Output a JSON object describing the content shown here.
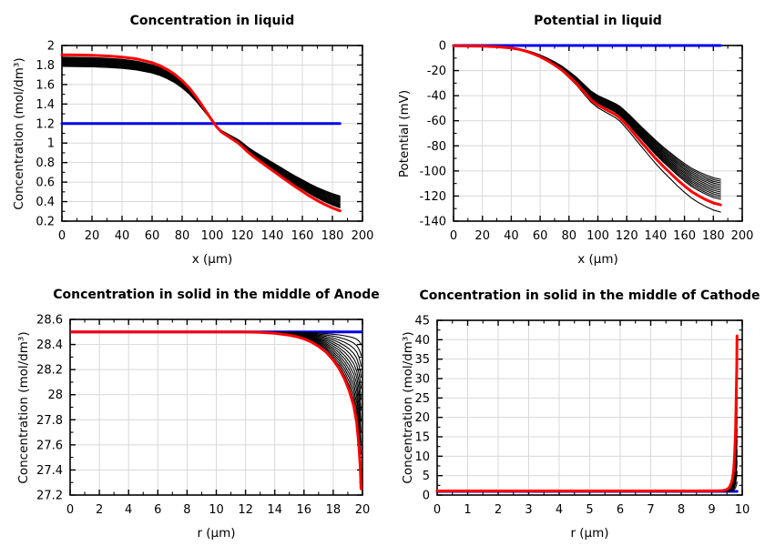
{
  "page": {
    "background": "#ffffff"
  },
  "colors": {
    "main_series": "#ff0000",
    "reference_series": "#0000e8",
    "family_series": "#000000",
    "grid": "#d8d8d8",
    "axis": "#000000"
  },
  "chart_data": [
    {
      "type": "line",
      "title": "Concentration in liquid",
      "xlabel": "x (µm)",
      "ylabel": "Concentration (mol/dm³)",
      "xlim": [
        0,
        200
      ],
      "ylim": [
        0.2,
        2
      ],
      "xticks": [
        "0",
        "20",
        "40",
        "60",
        "80",
        "100",
        "120",
        "140",
        "160",
        "180",
        "200"
      ],
      "yticks": [
        "0.2",
        "0.4",
        "0.6",
        "0.8",
        "1",
        "1.2",
        "1.4",
        "1.6",
        "1.8",
        "2"
      ],
      "grid": true,
      "legend": "none",
      "series": [
        {
          "name": "initial-reference",
          "color_key": "reference_series",
          "width": 3,
          "points": [
            [
              0,
              1.2
            ],
            [
              185,
              1.2
            ]
          ]
        },
        {
          "name": "time-family",
          "color_key": "family_series",
          "width": 1.1,
          "derived_from": "final-time",
          "pivot": 1.2,
          "count": 13,
          "scale_range": [
            0.83,
            0.965
          ]
        },
        {
          "name": "final-time",
          "color_key": "main_series",
          "width": 3,
          "points": [
            [
              0,
              1.905
            ],
            [
              10,
              1.903
            ],
            [
              20,
              1.9
            ],
            [
              30,
              1.893
            ],
            [
              40,
              1.882
            ],
            [
              50,
              1.862
            ],
            [
              60,
              1.825
            ],
            [
              65,
              1.795
            ],
            [
              70,
              1.755
            ],
            [
              75,
              1.705
            ],
            [
              80,
              1.64
            ],
            [
              85,
              1.56
            ],
            [
              90,
              1.46
            ],
            [
              95,
              1.345
            ],
            [
              100,
              1.23
            ],
            [
              103,
              1.165
            ],
            [
              106,
              1.115
            ],
            [
              110,
              1.075
            ],
            [
              114,
              1.035
            ],
            [
              117,
              1.005
            ],
            [
              120,
              0.965
            ],
            [
              124,
              0.905
            ],
            [
              128,
              0.855
            ],
            [
              132,
              0.81
            ],
            [
              136,
              0.765
            ],
            [
              140,
              0.72
            ],
            [
              145,
              0.665
            ],
            [
              150,
              0.61
            ],
            [
              155,
              0.555
            ],
            [
              160,
              0.505
            ],
            [
              165,
              0.455
            ],
            [
              170,
              0.41
            ],
            [
              175,
              0.37
            ],
            [
              180,
              0.335
            ],
            [
              185,
              0.305
            ]
          ]
        }
      ]
    },
    {
      "type": "line",
      "title": "Potential in liquid",
      "xlabel": "x (µm)",
      "ylabel": "Potential (mV)",
      "xlim": [
        0,
        200
      ],
      "ylim": [
        -140,
        0
      ],
      "xticks": [
        "0",
        "20",
        "40",
        "60",
        "80",
        "100",
        "120",
        "140",
        "160",
        "180",
        "200"
      ],
      "yticks": [
        "0",
        "-20",
        "-40",
        "-60",
        "-80",
        "-100",
        "-120",
        "-140"
      ],
      "grid": true,
      "legend": "none",
      "series": [
        {
          "name": "initial-reference",
          "color_key": "reference_series",
          "width": 3,
          "points": [
            [
              0,
              0
            ],
            [
              185,
              0
            ]
          ]
        },
        {
          "name": "time-family",
          "color_key": "family_series",
          "width": 1.1,
          "derived_from": "final-time",
          "pivot": 0,
          "count": 12,
          "scale_range": [
            0.84,
            0.965
          ],
          "extra_scales": [
            1.045
          ]
        },
        {
          "name": "final-time",
          "color_key": "main_series",
          "width": 3,
          "points": [
            [
              0,
              -0.3
            ],
            [
              10,
              -0.4
            ],
            [
              20,
              -0.6
            ],
            [
              30,
              -1
            ],
            [
              40,
              -2
            ],
            [
              45,
              -3
            ],
            [
              50,
              -4.5
            ],
            [
              55,
              -6.5
            ],
            [
              60,
              -9
            ],
            [
              65,
              -12
            ],
            [
              70,
              -15.5
            ],
            [
              75,
              -19.5
            ],
            [
              80,
              -24.5
            ],
            [
              85,
              -30
            ],
            [
              90,
              -36.5
            ],
            [
              95,
              -43
            ],
            [
              100,
              -47.5
            ],
            [
              104,
              -50
            ],
            [
              108,
              -52.5
            ],
            [
              112,
              -55
            ],
            [
              115,
              -57.5
            ],
            [
              118,
              -61
            ],
            [
              122,
              -66
            ],
            [
              126,
              -71.5
            ],
            [
              130,
              -77
            ],
            [
              135,
              -83.5
            ],
            [
              140,
              -90
            ],
            [
              145,
              -96
            ],
            [
              150,
              -101.5
            ],
            [
              155,
              -107
            ],
            [
              160,
              -112
            ],
            [
              165,
              -116.5
            ],
            [
              170,
              -120
            ],
            [
              175,
              -123
            ],
            [
              180,
              -125.5
            ],
            [
              185,
              -127
            ]
          ]
        }
      ]
    },
    {
      "type": "line",
      "title": "Concentration in solid in the middle of Anode",
      "xlabel": "r (µm)",
      "ylabel": "Concentration (mol/dm³)",
      "xlim": [
        0,
        20
      ],
      "ylim": [
        27.2,
        28.6
      ],
      "xticks": [
        "0",
        "2",
        "4",
        "6",
        "8",
        "10",
        "12",
        "14",
        "16",
        "18",
        "20"
      ],
      "yticks": [
        "27.2",
        "27.4",
        "27.6",
        "27.8",
        "28",
        "28.2",
        "28.4",
        "28.6"
      ],
      "grid": true,
      "legend": "none",
      "series": [
        {
          "name": "initial-reference",
          "color_key": "reference_series",
          "width": 3,
          "points": [
            [
              0.1,
              28.5
            ],
            [
              19.9,
              28.5
            ]
          ]
        },
        {
          "name": "time-family",
          "color_key": "family_series",
          "width": 1.1,
          "derived_from": "final-time",
          "pivot": 28.5,
          "count": 13,
          "scale_range": [
            0.08,
            0.92
          ]
        },
        {
          "name": "final-time",
          "color_key": "main_series",
          "width": 3,
          "points": [
            [
              0.1,
              28.5
            ],
            [
              2,
              28.5
            ],
            [
              4,
              28.5
            ],
            [
              6,
              28.5
            ],
            [
              8,
              28.5
            ],
            [
              10,
              28.5
            ],
            [
              11,
              28.5
            ],
            [
              12,
              28.499
            ],
            [
              13,
              28.496
            ],
            [
              14,
              28.489
            ],
            [
              15,
              28.474
            ],
            [
              15.5,
              28.462
            ],
            [
              16,
              28.445
            ],
            [
              16.5,
              28.42
            ],
            [
              17,
              28.385
            ],
            [
              17.5,
              28.34
            ],
            [
              18,
              28.275
            ],
            [
              18.4,
              28.21
            ],
            [
              18.8,
              28.12
            ],
            [
              19.1,
              28.03
            ],
            [
              19.4,
              27.91
            ],
            [
              19.6,
              27.78
            ],
            [
              19.75,
              27.6
            ],
            [
              19.85,
              27.42
            ],
            [
              19.9,
              27.25
            ]
          ]
        }
      ]
    },
    {
      "type": "line",
      "title": "Concentration in solid in the middle of Cathode",
      "xlabel": "r (µm)",
      "ylabel": "Concentration (mol/dm³)",
      "xlim": [
        0,
        10
      ],
      "ylim": [
        0,
        45
      ],
      "xticks": [
        "0",
        "1",
        "2",
        "3",
        "4",
        "5",
        "6",
        "7",
        "8",
        "9",
        "10"
      ],
      "yticks": [
        "0",
        "5",
        "10",
        "15",
        "20",
        "25",
        "30",
        "35",
        "40",
        "45"
      ],
      "grid": true,
      "legend": "none",
      "series": [
        {
          "name": "initial-reference",
          "color_key": "reference_series",
          "width": 3,
          "points": [
            [
              0,
              0.93
            ],
            [
              9.83,
              0.93
            ]
          ]
        },
        {
          "name": "time-family",
          "color_key": "family_series",
          "width": 1.1,
          "derived_from": "final-time",
          "pivot": 0.95,
          "count": 13,
          "scale_range": [
            0.06,
            0.88
          ]
        },
        {
          "name": "final-time",
          "color_key": "main_series",
          "width": 3,
          "points": [
            [
              0,
              1.05
            ],
            [
              2,
              1.05
            ],
            [
              4,
              1.05
            ],
            [
              6,
              1.05
            ],
            [
              8,
              1.05
            ],
            [
              8.5,
              1.055
            ],
            [
              9,
              1.07
            ],
            [
              9.2,
              1.1
            ],
            [
              9.35,
              1.16
            ],
            [
              9.45,
              1.3
            ],
            [
              9.52,
              1.55
            ],
            [
              9.58,
              2
            ],
            [
              9.63,
              2.8
            ],
            [
              9.68,
              4.2
            ],
            [
              9.72,
              6.5
            ],
            [
              9.75,
              10
            ],
            [
              9.78,
              16
            ],
            [
              9.8,
              24
            ],
            [
              9.82,
              33
            ],
            [
              9.83,
              41
            ]
          ]
        }
      ]
    }
  ]
}
